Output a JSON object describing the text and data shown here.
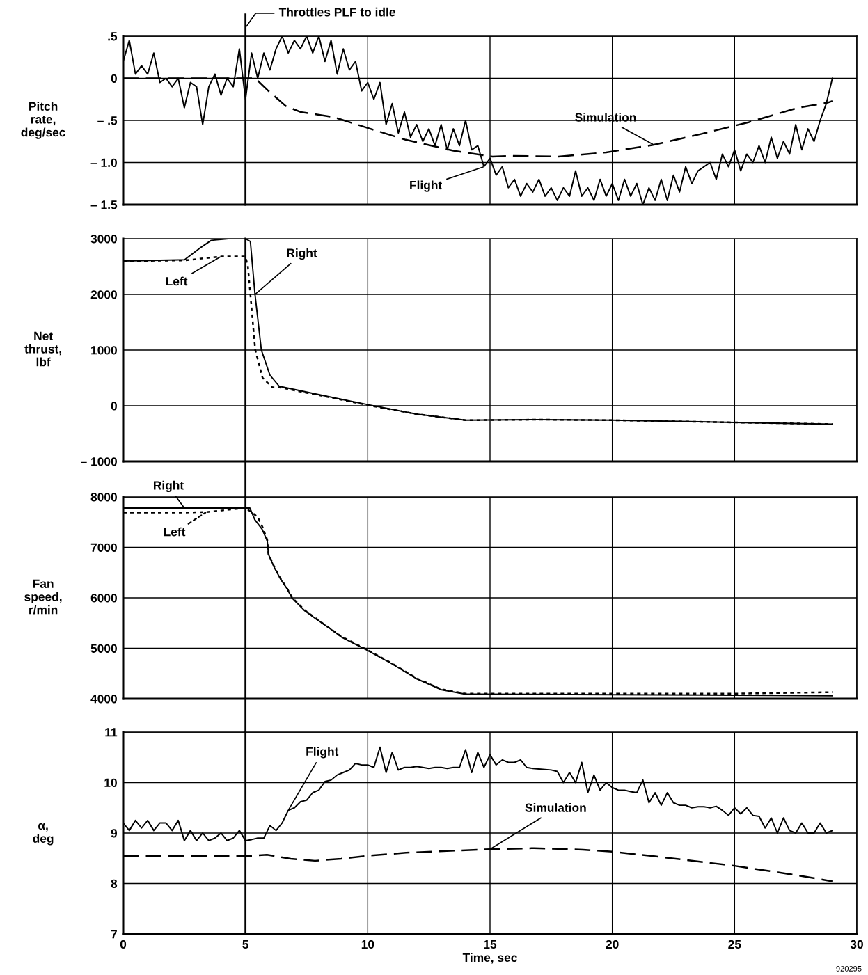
{
  "chart_data": [
    {
      "type": "line",
      "ylabel": "Pitch\nrate,\ndeg/sec",
      "xlim": [
        0,
        30
      ],
      "xticks": [
        0,
        5,
        10,
        15,
        20,
        25,
        30
      ],
      "ylim": [
        -1.5,
        0.5
      ],
      "yticks": [
        {
          "value": 0.5,
          "label": ".5"
        },
        0,
        {
          "value": -0.5,
          "label": "– .5"
        },
        {
          "value": -1.0,
          "label": "– 1.0"
        },
        {
          "value": -1.5,
          "label": "– 1.5"
        }
      ],
      "grid": true,
      "tick_labels": "y",
      "ref_lines": [
        {
          "axis": "x",
          "value": 5,
          "label": "Throttles PLF to idle",
          "color": "#000000"
        }
      ],
      "series": [
        {
          "name": "Flight",
          "color": "#000000",
          "line_style": "solid",
          "x": [
            0,
            0.25,
            0.5,
            0.75,
            1,
            1.25,
            1.5,
            1.75,
            2,
            2.25,
            2.5,
            2.75,
            3,
            3.25,
            3.5,
            3.75,
            4,
            4.25,
            4.5,
            4.75,
            5,
            5.25,
            5.5,
            5.75,
            6,
            6.25,
            6.5,
            6.75,
            7,
            7.25,
            7.5,
            7.75,
            8,
            8.25,
            8.5,
            8.75,
            9,
            9.25,
            9.5,
            9.75,
            10,
            10.25,
            10.5,
            10.75,
            11,
            11.25,
            11.5,
            11.75,
            12,
            12.25,
            12.5,
            12.75,
            13,
            13.25,
            13.5,
            13.75,
            14,
            14.25,
            14.5,
            14.75,
            15,
            15.25,
            15.5,
            15.75,
            16,
            16.25,
            16.5,
            16.75,
            17,
            17.25,
            17.5,
            17.75,
            18,
            18.25,
            18.5,
            18.75,
            19,
            19.25,
            19.5,
            19.75,
            20,
            20.25,
            20.5,
            20.75,
            21,
            21.25,
            21.5,
            21.75,
            22,
            22.25,
            22.5,
            22.75,
            23,
            23.25,
            23.5,
            23.75,
            24,
            24.25,
            24.5,
            24.75,
            25,
            25.25,
            25.5,
            25.75,
            26,
            26.25,
            26.5,
            26.75,
            27,
            27.25,
            27.5,
            27.75,
            28,
            28.25,
            28.5,
            28.75,
            29
          ],
          "values": [
            0.2,
            0.45,
            0.05,
            0.15,
            0.05,
            0.3,
            -0.05,
            0.0,
            -0.1,
            0.0,
            -0.35,
            -0.05,
            -0.1,
            -0.55,
            -0.1,
            0.05,
            -0.2,
            0.0,
            -0.1,
            0.35,
            -0.25,
            0.3,
            0.0,
            0.3,
            0.1,
            0.35,
            0.5,
            0.3,
            0.45,
            0.35,
            0.5,
            0.3,
            0.5,
            0.2,
            0.45,
            0.05,
            0.35,
            0.1,
            0.2,
            -0.15,
            -0.05,
            -0.25,
            -0.05,
            -0.55,
            -0.3,
            -0.65,
            -0.4,
            -0.7,
            -0.55,
            -0.75,
            -0.6,
            -0.8,
            -0.55,
            -0.85,
            -0.6,
            -0.8,
            -0.5,
            -0.85,
            -0.8,
            -1.05,
            -0.95,
            -1.15,
            -1.05,
            -1.3,
            -1.2,
            -1.4,
            -1.25,
            -1.35,
            -1.2,
            -1.4,
            -1.3,
            -1.45,
            -1.3,
            -1.4,
            -1.1,
            -1.4,
            -1.3,
            -1.45,
            -1.2,
            -1.4,
            -1.25,
            -1.45,
            -1.2,
            -1.4,
            -1.25,
            -1.5,
            -1.3,
            -1.45,
            -1.2,
            -1.45,
            -1.15,
            -1.35,
            -1.05,
            -1.25,
            -1.1,
            -1.05,
            -1.0,
            -1.2,
            -0.9,
            -1.05,
            -0.85,
            -1.1,
            -0.9,
            -1.0,
            -0.8,
            -1.0,
            -0.7,
            -0.95,
            -0.75,
            -0.9,
            -0.55,
            -0.85,
            -0.6,
            -0.75,
            -0.5,
            -0.3,
            0.0
          ]
        },
        {
          "name": "Simulation",
          "color": "#000000",
          "line_style": "dashed",
          "x": [
            0,
            5.4,
            5.9,
            6.65,
            7.25,
            8.6,
            10,
            11.55,
            13.5,
            15.1,
            15.84,
            17.8,
            19.75,
            21.7,
            23.65,
            25.6,
            27.6,
            28.8,
            29
          ],
          "values": [
            0,
            0,
            -0.14,
            -0.33,
            -0.4,
            -0.46,
            -0.59,
            -0.73,
            -0.86,
            -0.93,
            -0.92,
            -0.93,
            -0.88,
            -0.79,
            -0.66,
            -0.52,
            -0.35,
            -0.29,
            -0.27
          ]
        }
      ]
    },
    {
      "type": "line",
      "ylabel": "Net\nthrust,\nlbf",
      "xlim": [
        0,
        30
      ],
      "xticks": [
        0,
        5,
        10,
        15,
        20,
        25,
        30
      ],
      "ylim": [
        -1000,
        3000
      ],
      "yticks": [
        3000,
        2000,
        1000,
        0,
        {
          "value": -1000,
          "label": "– 1000"
        }
      ],
      "grid": true,
      "tick_labels": "y",
      "ref_lines": [
        {
          "axis": "x",
          "value": 5,
          "color": "#000000"
        }
      ],
      "series": [
        {
          "name": "Right",
          "color": "#000000",
          "line_style": "solid",
          "x": [
            0,
            2.5,
            3.1,
            3.6,
            4.3,
            5.0,
            5.2,
            5.39,
            5.65,
            6.0,
            6.38,
            8,
            10,
            12,
            14,
            17,
            20,
            25,
            29
          ],
          "values": [
            2600,
            2620,
            2820,
            2970,
            3000,
            3000,
            2950,
            2000,
            1000,
            550,
            350,
            200,
            20,
            -150,
            -260,
            -250,
            -260,
            -300,
            -330
          ]
        },
        {
          "name": "Left",
          "color": "#000000",
          "line_style": "dotted",
          "x": [
            0,
            2.5,
            4.0,
            5.0,
            5.1,
            5.2,
            5.4,
            5.7,
            6.1,
            6.38,
            8,
            10,
            12,
            14,
            17,
            20,
            25,
            29
          ],
          "values": [
            2600,
            2610,
            2680,
            2680,
            2500,
            2000,
            1000,
            500,
            330,
            330,
            190,
            10,
            -150,
            -260,
            -250,
            -260,
            -300,
            -330
          ]
        }
      ]
    },
    {
      "type": "line",
      "ylabel": "Fan\nspeed,\nr/min",
      "xlim": [
        0,
        30
      ],
      "xticks": [
        0,
        5,
        10,
        15,
        20,
        25,
        30
      ],
      "ylim": [
        4000,
        8000
      ],
      "yticks": [
        8000,
        7000,
        6000,
        5000,
        4000
      ],
      "grid": true,
      "tick_labels": "y",
      "ref_lines": [
        {
          "axis": "x",
          "value": 5,
          "color": "#000000"
        }
      ],
      "series": [
        {
          "name": "Right",
          "color": "#000000",
          "line_style": "solid",
          "x": [
            0,
            2.5,
            5.0,
            5.18,
            5.38,
            5.68,
            5.89,
            5.94,
            6.19,
            6.45,
            6.7,
            6.9,
            7.41,
            7.92,
            8.43,
            8.93,
            9.94,
            10.96,
            11.98,
            12.99,
            14.0,
            14.5,
            20,
            25,
            29
          ],
          "values": [
            7780,
            7780,
            7780,
            7780,
            7550,
            7360,
            7130,
            6860,
            6590,
            6360,
            6180,
            6000,
            5750,
            5570,
            5400,
            5220,
            4970,
            4700,
            4400,
            4180,
            4090,
            4090,
            4080,
            4070,
            4060
          ]
        },
        {
          "name": "Left",
          "color": "#000000",
          "line_style": "dotted",
          "x": [
            0,
            2.5,
            3.4,
            5.0,
            5.3,
            5.5,
            5.7,
            5.89,
            5.94,
            6.19,
            6.45,
            6.7,
            6.9,
            7.41,
            7.92,
            8.43,
            8.93,
            9.94,
            10.96,
            11.98,
            12.99,
            14.0,
            14.5,
            20,
            25,
            29
          ],
          "values": [
            7690,
            7690,
            7700,
            7780,
            7680,
            7600,
            7400,
            7150,
            6870,
            6600,
            6370,
            6190,
            6010,
            5760,
            5580,
            5400,
            5230,
            4980,
            4710,
            4410,
            4190,
            4100,
            4100,
            4100,
            4100,
            4130
          ]
        }
      ]
    },
    {
      "type": "line",
      "ylabel": "α,\ndeg",
      "xlabel": "Time, sec",
      "xlim": [
        0,
        30
      ],
      "xticks": [
        0,
        5,
        10,
        15,
        20,
        25,
        30
      ],
      "ylim": [
        7,
        11
      ],
      "yticks": [
        11,
        10,
        9,
        8,
        7
      ],
      "grid": true,
      "ref_lines": [
        {
          "axis": "x",
          "value": 5,
          "color": "#000000"
        }
      ],
      "annotations": [
        "920295"
      ],
      "series": [
        {
          "name": "Flight",
          "color": "#000000",
          "line_style": "solid",
          "x": [
            0,
            0.25,
            0.5,
            0.75,
            1,
            1.25,
            1.5,
            1.75,
            2,
            2.25,
            2.5,
            2.75,
            3,
            3.25,
            3.5,
            3.75,
            4,
            4.25,
            4.5,
            4.75,
            5,
            5.25,
            5.5,
            5.75,
            6,
            6.25,
            6.5,
            6.75,
            7,
            7.25,
            7.5,
            7.75,
            8,
            8.25,
            8.5,
            8.75,
            9,
            9.25,
            9.5,
            9.75,
            10,
            10.25,
            10.5,
            10.75,
            11,
            11.25,
            11.5,
            11.75,
            12,
            12.25,
            12.5,
            12.75,
            13,
            13.25,
            13.5,
            13.75,
            14,
            14.25,
            14.5,
            14.75,
            15,
            15.25,
            15.5,
            15.75,
            16,
            16.25,
            16.5,
            16.75,
            17,
            17.25,
            17.5,
            17.75,
            18,
            18.25,
            18.5,
            18.75,
            19,
            19.25,
            19.5,
            19.75,
            20,
            20.25,
            20.5,
            20.75,
            21,
            21.25,
            21.5,
            21.75,
            22,
            22.25,
            22.5,
            22.75,
            23,
            23.25,
            23.5,
            23.75,
            24,
            24.25,
            24.5,
            24.75,
            25,
            25.25,
            25.5,
            25.75,
            26,
            26.25,
            26.5,
            26.75,
            27,
            27.25,
            27.5,
            27.75,
            28,
            28.25,
            28.5,
            28.75,
            29
          ],
          "values": [
            9.2,
            9.05,
            9.25,
            9.1,
            9.25,
            9.05,
            9.2,
            9.2,
            9.05,
            9.25,
            8.85,
            9.05,
            8.85,
            9.0,
            8.85,
            8.9,
            9.0,
            8.85,
            8.9,
            9.05,
            8.85,
            8.87,
            8.9,
            8.9,
            9.15,
            9.05,
            9.2,
            9.45,
            9.5,
            9.62,
            9.65,
            9.8,
            9.85,
            10.02,
            10.05,
            10.15,
            10.2,
            10.25,
            10.38,
            10.35,
            10.35,
            10.3,
            10.7,
            10.2,
            10.6,
            10.25,
            10.3,
            10.3,
            10.32,
            10.3,
            10.28,
            10.3,
            10.3,
            10.28,
            10.3,
            10.3,
            10.65,
            10.2,
            10.6,
            10.3,
            10.55,
            10.35,
            10.45,
            10.4,
            10.4,
            10.45,
            10.3,
            10.28,
            10.27,
            10.26,
            10.25,
            10.22,
            10.0,
            10.2,
            10.0,
            10.4,
            9.8,
            10.15,
            9.85,
            10.0,
            9.9,
            9.85,
            9.85,
            9.82,
            9.8,
            10.05,
            9.6,
            9.8,
            9.55,
            9.8,
            9.6,
            9.55,
            9.55,
            9.5,
            9.52,
            9.52,
            9.5,
            9.53,
            9.45,
            9.35,
            9.5,
            9.38,
            9.5,
            9.35,
            9.33,
            9.1,
            9.3,
            9.0,
            9.3,
            9.05,
            9.0,
            9.2,
            9.0,
            9.0,
            9.2,
            9.0,
            9.05
          ]
        },
        {
          "name": "Simulation",
          "color": "#000000",
          "line_style": "dashed",
          "x": [
            0,
            5.0,
            5.88,
            6.85,
            7.84,
            8.91,
            10,
            11.56,
            14,
            15,
            16.8,
            18.8,
            20,
            21.7,
            25,
            27.6,
            29
          ],
          "values": [
            8.54,
            8.54,
            8.57,
            8.49,
            8.45,
            8.49,
            8.55,
            8.61,
            8.66,
            8.68,
            8.7,
            8.67,
            8.63,
            8.54,
            8.35,
            8.16,
            8.04
          ]
        }
      ]
    }
  ]
}
